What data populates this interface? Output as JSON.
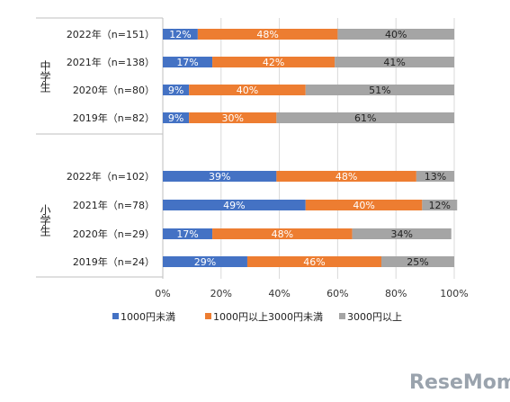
{
  "chart_data": {
    "type": "bar",
    "orientation": "horizontal",
    "stacked": true,
    "normalized": true,
    "groups": [
      {
        "label": "中学生",
        "categories": [
          "2022年（n=151）",
          "2021年（n=138）",
          "2020年（n=80）",
          "2019年（n=82）"
        ]
      },
      {
        "label": "小学生",
        "categories": [
          "2022年（n=102）",
          "2021年（n=78）",
          "2020年（n=29）",
          "2019年（n=24）"
        ]
      }
    ],
    "categories": [
      "2022年（n=151）",
      "2021年（n=138）",
      "2020年（n=80）",
      "2019年（n=82）",
      "2022年（n=102）",
      "2021年（n=78）",
      "2020年（n=29）",
      "2019年（n=24）"
    ],
    "series": [
      {
        "name": "1000円未満",
        "color": "#4472c4",
        "values": [
          12,
          17,
          9,
          9,
          39,
          49,
          17,
          29
        ]
      },
      {
        "name": "1000円以上3000円未満",
        "color": "#ed7d31",
        "values": [
          48,
          42,
          40,
          30,
          48,
          40,
          48,
          46
        ]
      },
      {
        "name": "3000円以上",
        "color": "#a5a5a5",
        "values": [
          40,
          41,
          51,
          61,
          13,
          12,
          34,
          25
        ]
      }
    ],
    "data_labels": [
      "12%",
      "17%",
      "9%",
      "9%",
      "39%",
      "49%",
      "17%",
      "29%",
      "48%",
      "42%",
      "40%",
      "30%",
      "48%",
      "40%",
      "48%",
      "46%",
      "40%",
      "41%",
      "51%",
      "61%",
      "13%",
      "12%",
      "34%",
      "25%"
    ],
    "x_ticks": [
      "0%",
      "20%",
      "40%",
      "60%",
      "80%",
      "100%"
    ],
    "xlim": [
      0,
      100
    ],
    "grid": true,
    "legend_position": "bottom"
  },
  "watermark": "ReseMom"
}
